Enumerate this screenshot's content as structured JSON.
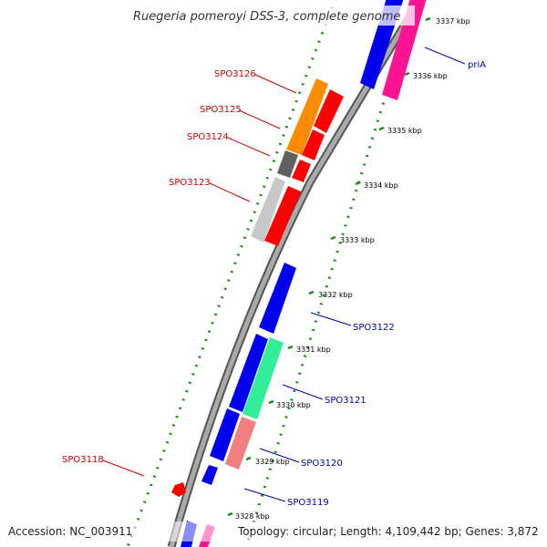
{
  "title": "Ruegeria pomeroyi DSS-3, complete genome",
  "footer": {
    "accession": "Accession: NC_003911",
    "summary": "Topology: circular; Length: 4,109,442 bp; Genes: 3,872"
  },
  "colors": {
    "backbone": "#888888",
    "tick": "#1a8a1a",
    "label_red": "#cc0000",
    "label_blue": "#0000aa",
    "blue": "#0000ee",
    "red": "#ff0000",
    "orange": "#ff8c00",
    "pink": "#ff1493",
    "dark_gray": "#606060",
    "light_gray": "#c8c8c8",
    "teal": "#33ee99",
    "salmon": "#f08080"
  },
  "kbp_labels": [
    "3337 kbp",
    "3336 kbp",
    "3335 kbp",
    "3334 kbp",
    "3333 kbp",
    "3332 kbp",
    "3331 kbp",
    "3330 kbp",
    "3329 kbp",
    "3328 kbp"
  ],
  "gene_labels": {
    "spo3126": "SPO3126",
    "spo3125": "SPO3125",
    "spo3124": "SPO3124",
    "spo3123": "SPO3123",
    "spo3118": "SPO3118",
    "pria": "priA",
    "spo3122": "SPO3122",
    "spo3121": "SPO3121",
    "spo3120": "SPO3120",
    "spo3119": "SPO3119"
  }
}
